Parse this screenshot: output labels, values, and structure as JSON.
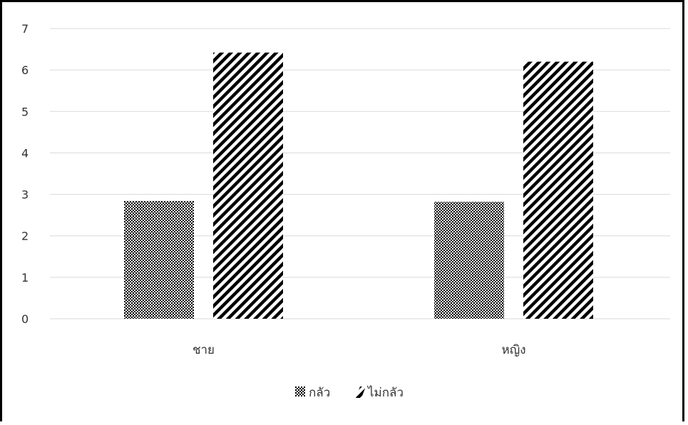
{
  "chart_data": {
    "type": "bar",
    "categories": [
      "ชาย",
      "หญิง"
    ],
    "series": [
      {
        "name": "กลัว",
        "values": [
          2.84,
          2.82
        ],
        "pattern": "checker"
      },
      {
        "name": "ไม่กลัว",
        "values": [
          6.42,
          6.2
        ],
        "pattern": "diagonal"
      }
    ],
    "ylim": [
      0,
      7
    ],
    "yticks": [
      "0",
      "1",
      "2",
      "3",
      "4",
      "5",
      "6",
      "7"
    ],
    "grid": true,
    "legend_position": "bottom",
    "colors": {
      "bar": "#000000",
      "grid": "#d9d9d9",
      "text": "#333333"
    }
  }
}
